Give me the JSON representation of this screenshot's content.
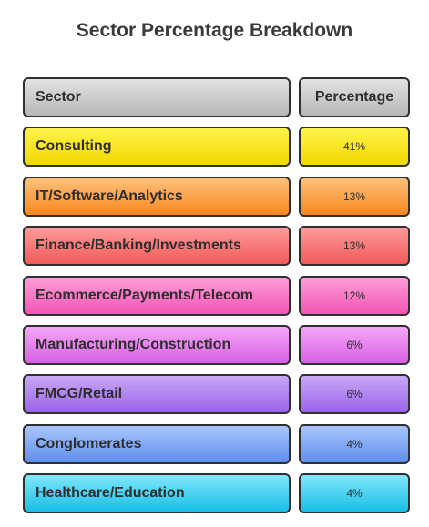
{
  "chart_data": {
    "type": "table",
    "title": "Sector Percentage Breakdown",
    "columns": [
      "Sector",
      "Percentage"
    ],
    "rows": [
      {
        "sector": "Consulting",
        "percentage": "41%",
        "value": 41,
        "color_top": "#fff34a",
        "color_bottom": "#f1d800"
      },
      {
        "sector": "IT/Software/Analytics",
        "percentage": "13%",
        "value": 13,
        "color_top": "#ffc07a",
        "color_bottom": "#f6881f"
      },
      {
        "sector": "Finance/Banking/Investments",
        "percentage": "13%",
        "value": 13,
        "color_top": "#ff9a9a",
        "color_bottom": "#f25a5a"
      },
      {
        "sector": "Ecommerce/Payments/Telecom",
        "percentage": "12%",
        "value": 12,
        "color_top": "#ff9ed8",
        "color_bottom": "#f255b6"
      },
      {
        "sector": "Manufacturing/Construction",
        "percentage": "6%",
        "value": 6,
        "color_top": "#f4a8f6",
        "color_bottom": "#d95ee4"
      },
      {
        "sector": "FMCG/Retail",
        "percentage": "6%",
        "value": 6,
        "color_top": "#c9a8f7",
        "color_bottom": "#9a63ea"
      },
      {
        "sector": "Conglomerates",
        "percentage": "4%",
        "value": 4,
        "color_top": "#a9c6fb",
        "color_bottom": "#5f8eee"
      },
      {
        "sector": "Healthcare/Education",
        "percentage": "4%",
        "value": 4,
        "color_top": "#7fe7fb",
        "color_bottom": "#18bfe6"
      }
    ]
  }
}
